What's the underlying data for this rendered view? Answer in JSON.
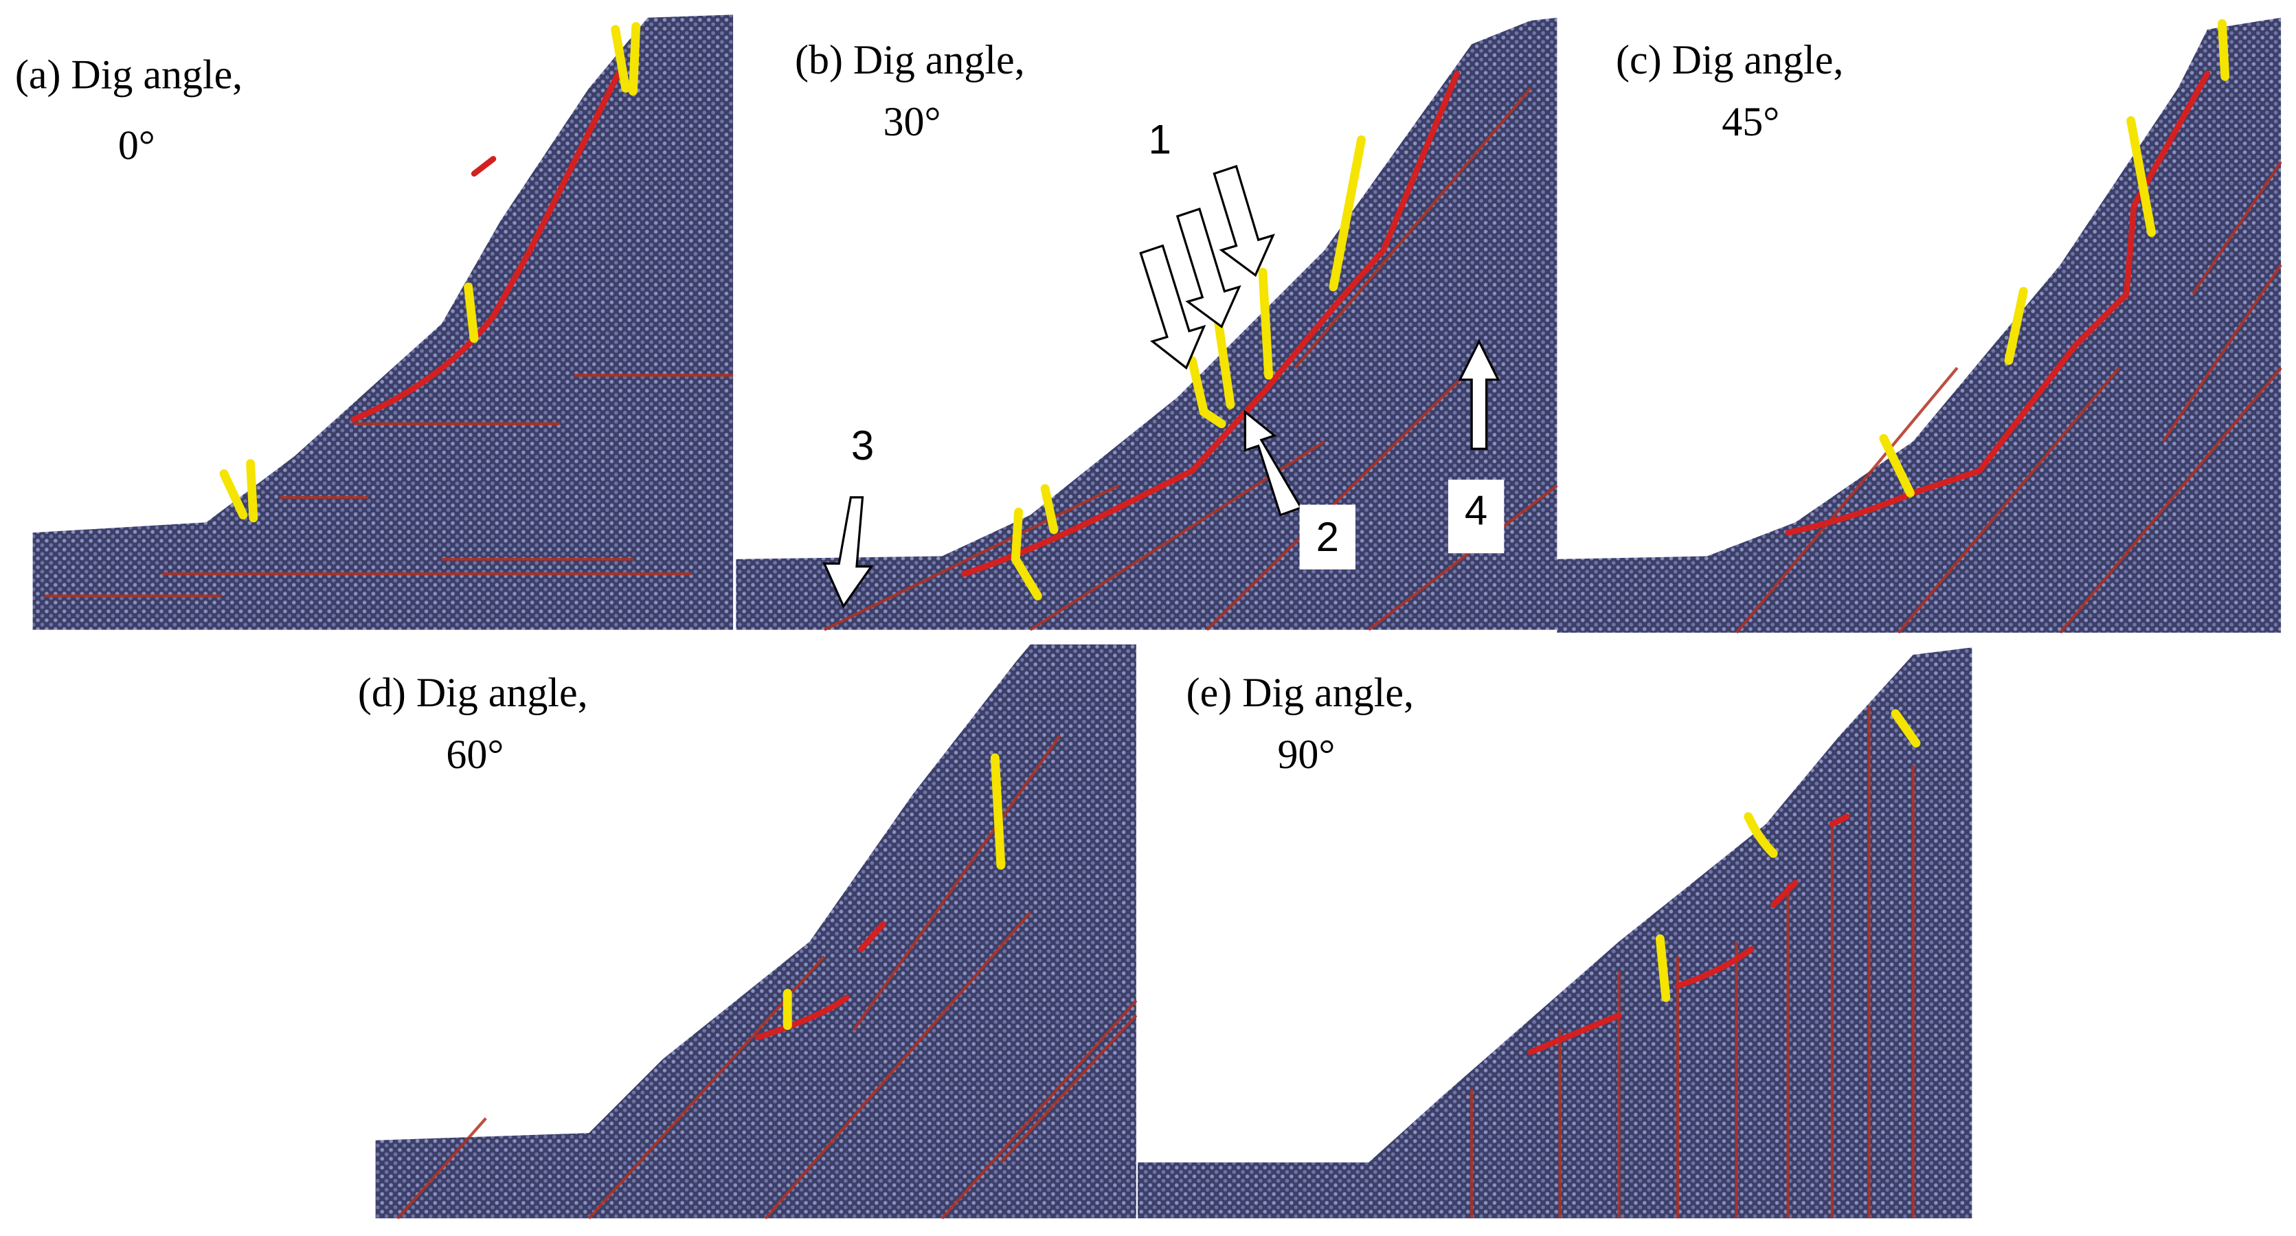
{
  "panels": [
    {
      "label": "(a) Dig angle,",
      "angle": "0°"
    },
    {
      "label": "(b) Dig angle,",
      "angle": "30°"
    },
    {
      "label": "(c) Dig angle,",
      "angle": "45°"
    },
    {
      "label": "(d) Dig angle,",
      "angle": "60°"
    },
    {
      "label": "(e) Dig angle,",
      "angle": "90°"
    }
  ],
  "annotations": [
    "1",
    "2",
    "3",
    "4"
  ]
}
